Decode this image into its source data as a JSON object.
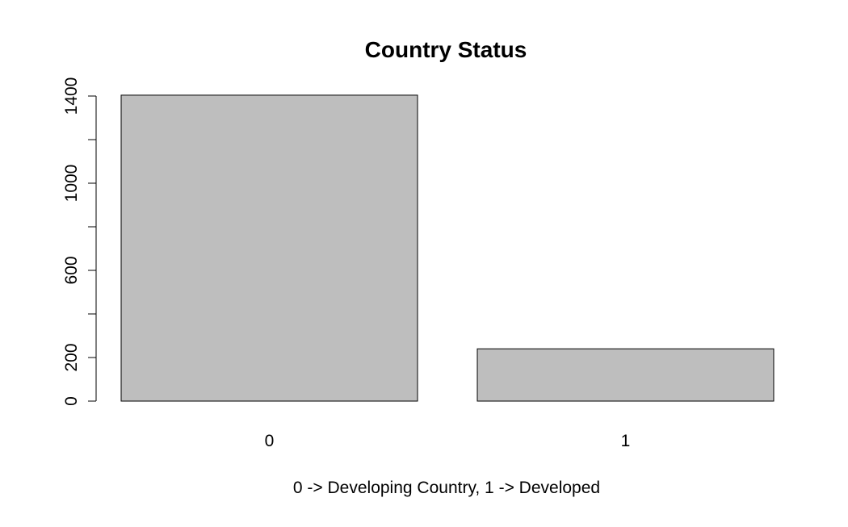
{
  "chart_data": {
    "type": "bar",
    "title": "Country Status",
    "xlabel": "0 -> Developing Country, 1 -> Developed",
    "ylabel": "",
    "categories": [
      "0",
      "1"
    ],
    "values": [
      1404,
      240
    ],
    "ylim": [
      0,
      1400
    ],
    "y_ticks": [
      0,
      200,
      400,
      600,
      800,
      1000,
      1200,
      1400
    ],
    "y_tick_labels": [
      "0",
      "200",
      "",
      "600",
      "",
      "1000",
      "",
      "1400"
    ],
    "grid": false,
    "legend": "none",
    "bar_color": "#bebebe",
    "bar_border_color": "#000000"
  }
}
